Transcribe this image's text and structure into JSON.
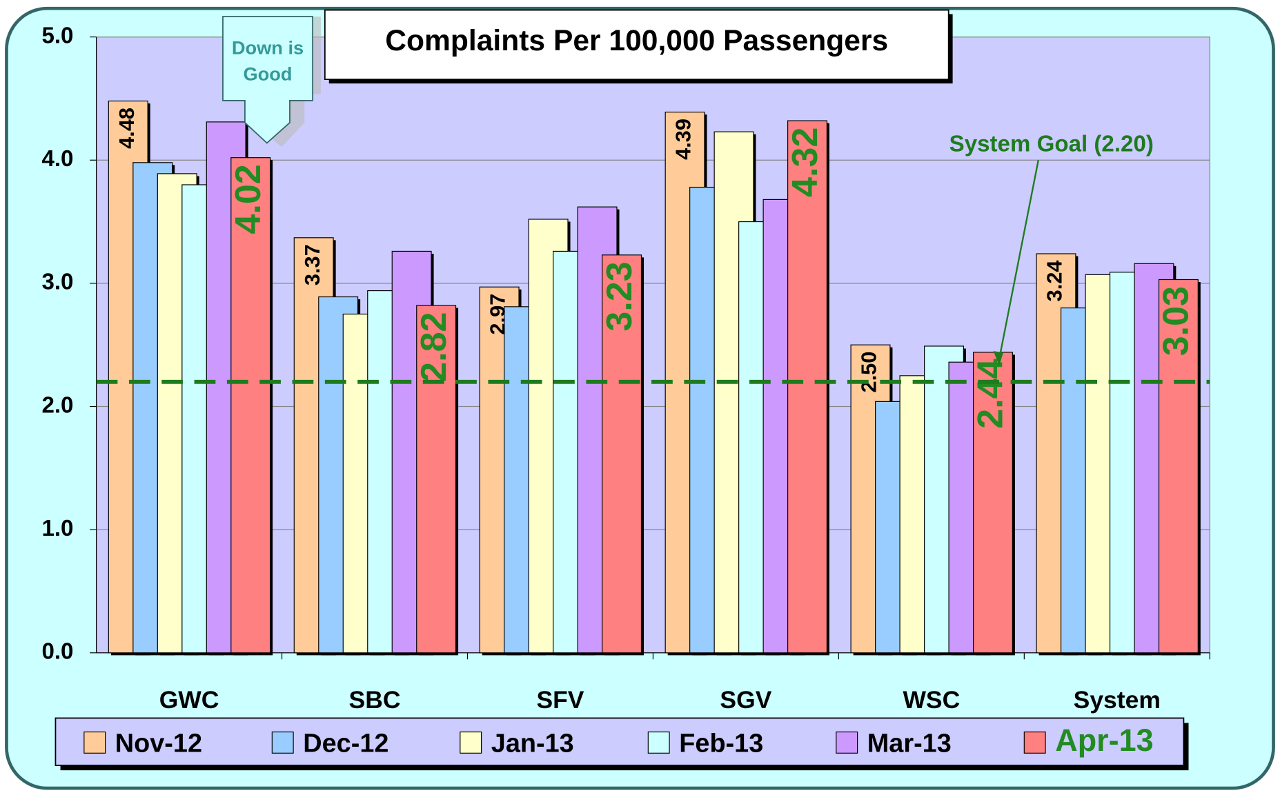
{
  "chart_data": {
    "type": "bar",
    "title": "Complaints Per 100,000 Passengers",
    "categories": [
      "GWC",
      "SBC",
      "SFV",
      "SGV",
      "WSC",
      "System"
    ],
    "series": [
      {
        "name": "Nov-12",
        "color": "#ffcc99",
        "values": [
          4.48,
          3.37,
          2.97,
          4.39,
          2.5,
          3.24
        ],
        "value_labels": [
          "4.48",
          "3.37",
          "2.97",
          "4.39",
          "2.50",
          "3.24"
        ],
        "label_color": "#000000"
      },
      {
        "name": "Dec-12",
        "color": "#99ccff",
        "values": [
          3.98,
          2.89,
          2.81,
          3.78,
          2.04,
          2.8
        ]
      },
      {
        "name": "Jan-13",
        "color": "#ffffcc",
        "values": [
          3.89,
          2.75,
          3.52,
          4.23,
          2.25,
          3.07
        ]
      },
      {
        "name": "Feb-13",
        "color": "#ccffff",
        "values": [
          3.8,
          2.94,
          3.26,
          3.5,
          2.49,
          3.09
        ]
      },
      {
        "name": "Mar-13",
        "color": "#cc99ff",
        "values": [
          4.31,
          3.26,
          3.62,
          3.68,
          2.36,
          3.16
        ]
      },
      {
        "name": "Apr-13",
        "color": "#ff8080",
        "values": [
          4.02,
          2.82,
          3.23,
          4.32,
          2.44,
          3.03
        ],
        "value_labels": [
          "4.02",
          "2.82",
          "3.23",
          "4.32",
          "2.44",
          "3.03"
        ],
        "label_color": "#228b22"
      }
    ],
    "ylim": [
      0,
      5
    ],
    "yticks": [
      {
        "value": 0,
        "label": "0.0"
      },
      {
        "value": 1,
        "label": "1.0"
      },
      {
        "value": 2,
        "label": "2.0"
      },
      {
        "value": 3,
        "label": "3.0"
      },
      {
        "value": 4,
        "label": "4.0"
      },
      {
        "value": 5,
        "label": "5.0"
      }
    ],
    "grid": true,
    "goal": {
      "value": 2.2,
      "label": "System Goal (2.20)",
      "color": "#1e7b1e"
    },
    "callout": [
      "Down is",
      "Good"
    ],
    "legend": "bottom"
  }
}
